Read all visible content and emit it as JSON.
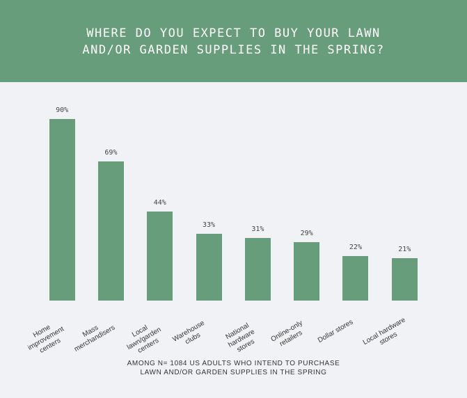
{
  "chart_data": {
    "type": "bar",
    "title": "WHERE DO YOU EXPECT TO BUY YOUR LAWN\nAND/OR GARDEN SUPPLIES IN THE SPRING?",
    "categories": [
      "Home\nimprovement\ncenters",
      "Mass\nmerchandisers",
      "Local\nlawn/garden\ncenters",
      "Warehouse\nclubs",
      "National\nhardware\nstores",
      "Online-only\nretailers",
      "Dollar stores",
      "Local hardware\nstores"
    ],
    "values": [
      90,
      69,
      44,
      33,
      31,
      29,
      22,
      21
    ],
    "value_labels": [
      "90%",
      "69%",
      "44%",
      "33%",
      "31%",
      "29%",
      "22%",
      "21%"
    ],
    "color": "#679d7a",
    "ylim": [
      0,
      100
    ],
    "note": "AMONG N= 1084 US ADULTS WHO INTEND TO PURCHASE\nLAWN AND/OR GARDEN SUPPLIES IN THE SPRING"
  }
}
